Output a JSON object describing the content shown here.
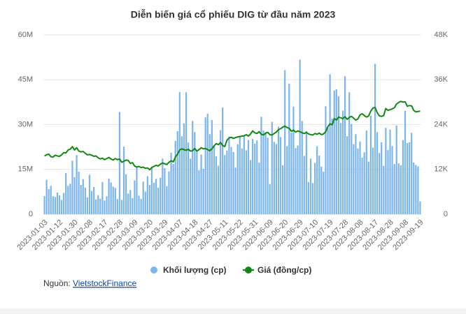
{
  "chart_data": {
    "type": "combo",
    "title": "Diễn biến giá cổ phiếu DIG từ đầu năm 2023",
    "categories": [
      "2023-01-03",
      null,
      null,
      null,
      null,
      null,
      null,
      "2023-01-12",
      null,
      null,
      null,
      null,
      null,
      null,
      "2023-01-30",
      null,
      null,
      null,
      null,
      null,
      null,
      "2023-02-08",
      null,
      null,
      null,
      null,
      null,
      null,
      "2023-02-17",
      null,
      null,
      null,
      null,
      null,
      null,
      "2023-02-28",
      null,
      null,
      null,
      null,
      null,
      null,
      "2023-03-09",
      null,
      null,
      null,
      null,
      null,
      null,
      "2023-03-20",
      null,
      null,
      null,
      null,
      null,
      null,
      "2023-03-29",
      null,
      null,
      null,
      null,
      null,
      null,
      "2023-04-07",
      null,
      null,
      null,
      null,
      null,
      null,
      "2023-04-18",
      null,
      null,
      null,
      null,
      null,
      null,
      "2023-04-27",
      null,
      null,
      null,
      null,
      null,
      null,
      "2023-05-11",
      null,
      null,
      null,
      null,
      null,
      null,
      "2023-05-22",
      null,
      null,
      null,
      null,
      null,
      null,
      "2023-05-31",
      null,
      null,
      null,
      null,
      null,
      null,
      "2023-06-09",
      null,
      null,
      null,
      null,
      null,
      null,
      "2023-06-20",
      null,
      null,
      null,
      null,
      null,
      null,
      "2023-06-29",
      null,
      null,
      null,
      null,
      null,
      null,
      "2023-07-10",
      null,
      null,
      null,
      null,
      null,
      null,
      "2023-07-19",
      null,
      null,
      null,
      null,
      null,
      null,
      "2023-07-28",
      null,
      null,
      null,
      null,
      null,
      null,
      "2023-08-08",
      null,
      null,
      null,
      null,
      null,
      null,
      "2023-08-17",
      null,
      null,
      null,
      null,
      null,
      null,
      "2023-08-28",
      null,
      null,
      null,
      null,
      null,
      null,
      "2023-09-08",
      null,
      null,
      null,
      null,
      null,
      null,
      "2023-09-19"
    ],
    "series": [
      {
        "name": "Khối lượng (cp)",
        "type": "bar",
        "color": "#7cb5ec",
        "values": [
          6100000,
          11500000,
          8400000,
          9500000,
          6000000,
          5800000,
          7200000,
          6300000,
          4800000,
          7100000,
          13800000,
          9500000,
          10200000,
          17900000,
          12400000,
          19800000,
          14200000,
          9800000,
          11700000,
          8900000,
          5600000,
          13200000,
          7800000,
          9100000,
          4900000,
          6400000,
          5200000,
          10800000,
          4600000,
          6000000,
          11900000,
          10600000,
          9200000,
          8800000,
          5100000,
          34200000,
          4800000,
          22600000,
          13400000,
          6900000,
          8100000,
          5400000,
          11300000,
          15800000,
          6200000,
          5100000,
          10900000,
          7600000,
          12700000,
          9800000,
          15900000,
          10500000,
          11800000,
          8900000,
          12200000,
          18600000,
          15400000,
          9400000,
          14300000,
          20600000,
          16800000,
          24500000,
          27800000,
          40900000,
          26100000,
          30400000,
          40800000,
          24000000,
          18600000,
          31200000,
          27500000,
          21300000,
          14700000,
          20000000,
          15200000,
          32400000,
          33600000,
          26800000,
          31500000,
          23000000,
          19400000,
          16200000,
          28100000,
          35700000,
          19800000,
          21300000,
          26000000,
          22500000,
          20800000,
          15600000,
          23400000,
          25800000,
          22000000,
          26500000,
          21400000,
          24800000,
          18100000,
          25200000,
          23600000,
          24700000,
          17300000,
          32600000,
          28000000,
          27400000,
          25600000,
          10100000,
          30900000,
          24200000,
          23500000,
          29300000,
          25800000,
          16400000,
          48200000,
          22800000,
          43700000,
          27300000,
          36000000,
          22100000,
          23000000,
          51700000,
          31200000,
          19500000,
          27800000,
          10800000,
          18600000,
          10400000,
          17200000,
          22700000,
          19600000,
          15900000,
          14200000,
          36100000,
          28900000,
          46800000,
          32000000,
          41400000,
          41800000,
          39500000,
          30500000,
          34700000,
          46200000,
          26100000,
          40800000,
          30200000,
          23400000,
          26800000,
          22000000,
          24300000,
          18900000,
          20700000,
          28000000,
          17600000,
          33000000,
          22300000,
          50300000,
          27500000,
          20500000,
          24100000,
          16200000,
          28900000,
          21500000,
          28300000,
          22800000,
          16800000,
          29700000,
          17000000,
          16400000,
          24800000,
          34600000,
          23800000,
          24100000,
          27200000,
          17300000,
          16500000,
          16000000,
          4300000
        ]
      },
      {
        "name": "Giá (đồng/cp)",
        "type": "line",
        "axis": "y2",
        "color": "#118811",
        "values": [
          15600,
          15900,
          16100,
          15400,
          15300,
          15800,
          15600,
          15500,
          15900,
          16500,
          16400,
          17200,
          17400,
          18100,
          17200,
          17800,
          16900,
          16700,
          16800,
          16300,
          15900,
          16000,
          15800,
          15500,
          15600,
          15100,
          14800,
          15000,
          14600,
          14900,
          15200,
          14800,
          14500,
          14900,
          14600,
          14800,
          13900,
          14200,
          14500,
          14400,
          13600,
          13800,
          12900,
          12600,
          12800,
          12500,
          12600,
          12300,
          12400,
          11900,
          12500,
          12800,
          13100,
          12900,
          13400,
          13700,
          13500,
          13300,
          13900,
          14300,
          14000,
          15300,
          16100,
          17200,
          17500,
          17300,
          17100,
          17400,
          16900,
          17000,
          17600,
          16900,
          17300,
          17800,
          17500,
          17600,
          17300,
          17000,
          17500,
          18300,
          18900,
          18600,
          19200,
          18400,
          18100,
          19800,
          20400,
          20600,
          20300,
          20500,
          20700,
          20800,
          20900,
          21000,
          21300,
          20900,
          21500,
          22300,
          21800,
          21600,
          22100,
          21400,
          21200,
          21700,
          21900,
          21300,
          21200,
          21600,
          22000,
          22600,
          22900,
          23300,
          23600,
          23200,
          23000,
          22200,
          22500,
          22000,
          22300,
          22100,
          21800,
          21600,
          21900,
          21500,
          21300,
          21200,
          21600,
          21400,
          21700,
          21300,
          21500,
          22100,
          23400,
          24200,
          23900,
          25600,
          25200,
          26000,
          25800,
          25600,
          26100,
          25400,
          25900,
          26200,
          25700,
          25200,
          25500,
          26600,
          26900,
          26400,
          26000,
          26300,
          27600,
          28400,
          28600,
          27200,
          26300,
          26200,
          26400,
          28300,
          27800,
          28000,
          28200,
          28500,
          29500,
          29900,
          30200,
          30000,
          30100,
          28900,
          29100,
          29000,
          27800,
          27400,
          27500,
          27600
        ]
      }
    ],
    "ylim": [
      0,
      60000000
    ],
    "yticks": [
      0,
      {
        "value": 15000000,
        "label": "15M"
      },
      {
        "value": 30000000,
        "label": "30M"
      },
      {
        "value": 45000000,
        "label": "45M"
      },
      {
        "value": 60000000,
        "label": "60M"
      }
    ],
    "y2lim": [
      0,
      48000
    ],
    "y2ticks": [
      0,
      {
        "value": 12000,
        "label": "12K"
      },
      {
        "value": 24000,
        "label": "24K"
      },
      {
        "value": 36000,
        "label": "36K"
      },
      {
        "value": 48000,
        "label": "48K"
      }
    ],
    "grid": true,
    "legend": "bottom"
  },
  "source": {
    "label": "Nguồn:",
    "link": "VietstockFinance"
  }
}
